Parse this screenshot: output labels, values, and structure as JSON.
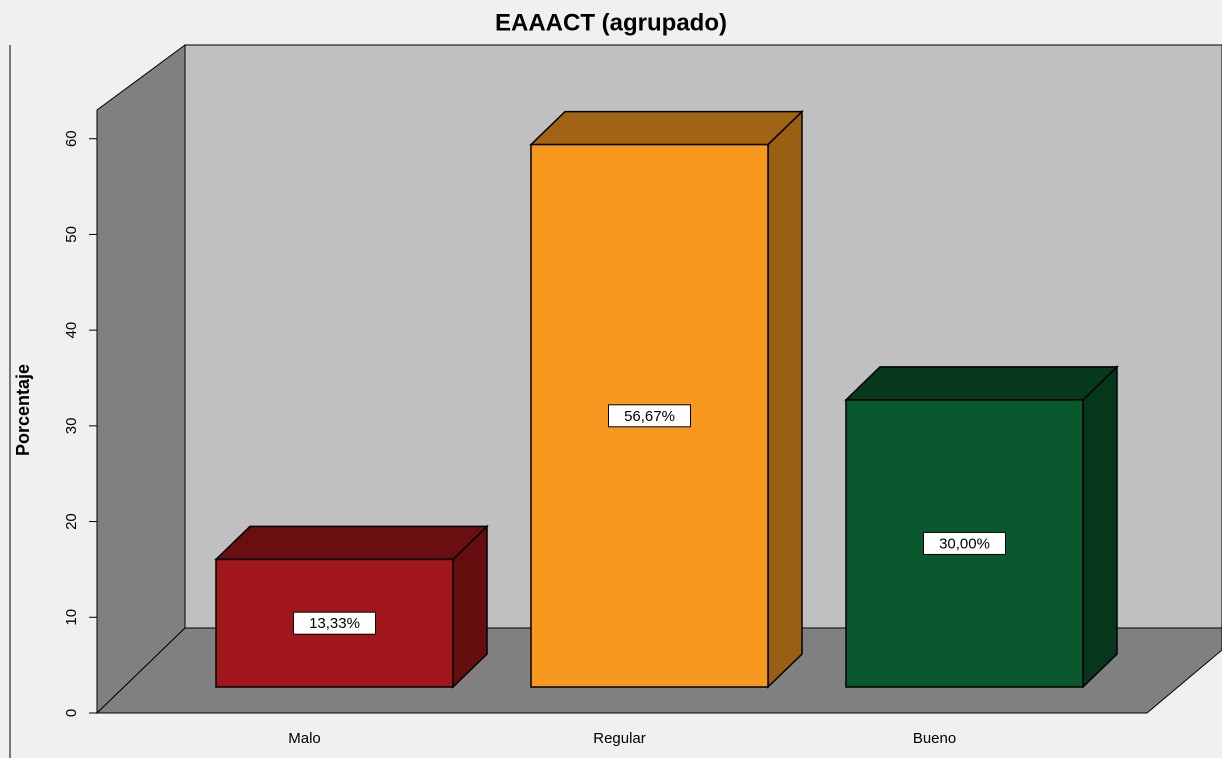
{
  "chart_data": {
    "type": "bar3d",
    "title": "EAAACT (agrupado)",
    "ylabel": "Porcentaje",
    "categories": [
      "Malo",
      "Regular",
      "Bueno"
    ],
    "values": [
      13.33,
      56.67,
      30.0
    ],
    "value_labels": [
      "13,33%",
      "56,67%",
      "30,00%"
    ],
    "colors": [
      "#a1161a",
      "#f7991f",
      "#0a582d"
    ],
    "ylim": [
      0,
      63
    ],
    "yticks": [
      0,
      10,
      20,
      30,
      40,
      50,
      60
    ]
  }
}
